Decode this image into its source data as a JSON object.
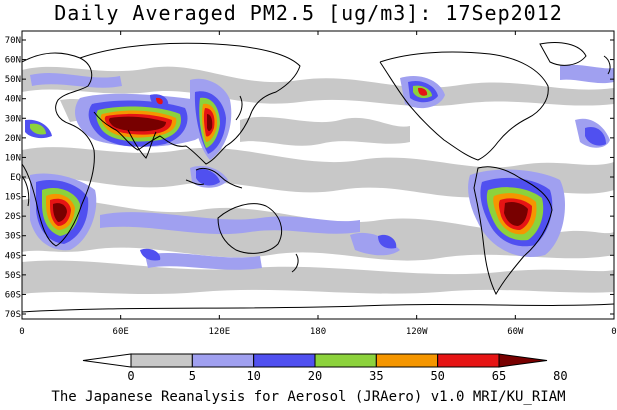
{
  "title": "Daily Averaged PM2.5 [ug/m3]: 17Sep2012",
  "credit": "The Japanese Reanalysis for Aerosol (JRAero) v1.0 MRI/KU_RIAM",
  "lat_labels": [
    "70N",
    "60N",
    "50N",
    "40N",
    "30N",
    "20N",
    "10N",
    "EQ",
    "10S",
    "20S",
    "30S",
    "40S",
    "50S",
    "60S",
    "70S"
  ],
  "lon_labels": [
    "0",
    "60E",
    "120E",
    "180",
    "120W",
    "60W",
    "0"
  ],
  "colorbar": {
    "labels": [
      "0",
      "5",
      "10",
      "20",
      "35",
      "50",
      "65",
      "80"
    ],
    "colors": [
      "#ffffff",
      "#c8c8c8",
      "#a0a0f0",
      "#5050f0",
      "#8cd23c",
      "#f59600",
      "#e61414",
      "#780000"
    ]
  },
  "levels": {
    "c1": "#c8c8c8",
    "c2": "#a0a0f0",
    "c3": "#5050f0",
    "c4": "#8cd23c",
    "c5": "#f59600",
    "c6": "#e61414",
    "c7": "#780000"
  }
}
